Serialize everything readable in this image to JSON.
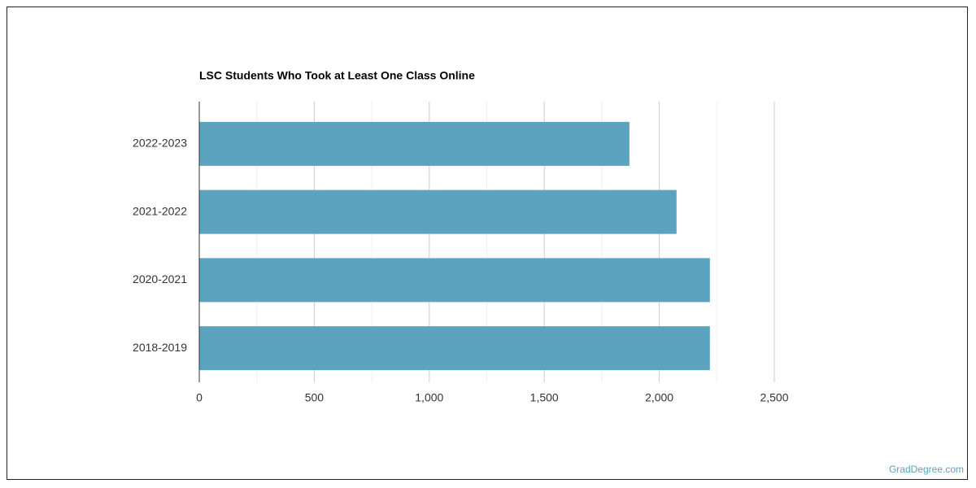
{
  "chart_data": {
    "type": "bar",
    "orientation": "horizontal",
    "title": "LSC Students Who Took at Least One Class Online",
    "categories": [
      "2022-2023",
      "2021-2022",
      "2020-2021",
      "2018-2019"
    ],
    "values": [
      1870,
      2075,
      2220,
      2220
    ],
    "color": "#5ba3bf",
    "xlim": [
      0,
      2500
    ],
    "xticks": [
      0,
      500,
      {
        "value": 1000,
        "label": "1,000"
      },
      {
        "value": 1500,
        "label": "1,500"
      },
      {
        "value": 2000,
        "label": "2,000"
      },
      {
        "value": 2500,
        "label": "2,500"
      }
    ],
    "xminor": [
      250,
      750,
      1250,
      1750,
      2250
    ],
    "grid": true
  },
  "footer": {
    "source": "GradDegree.com"
  }
}
